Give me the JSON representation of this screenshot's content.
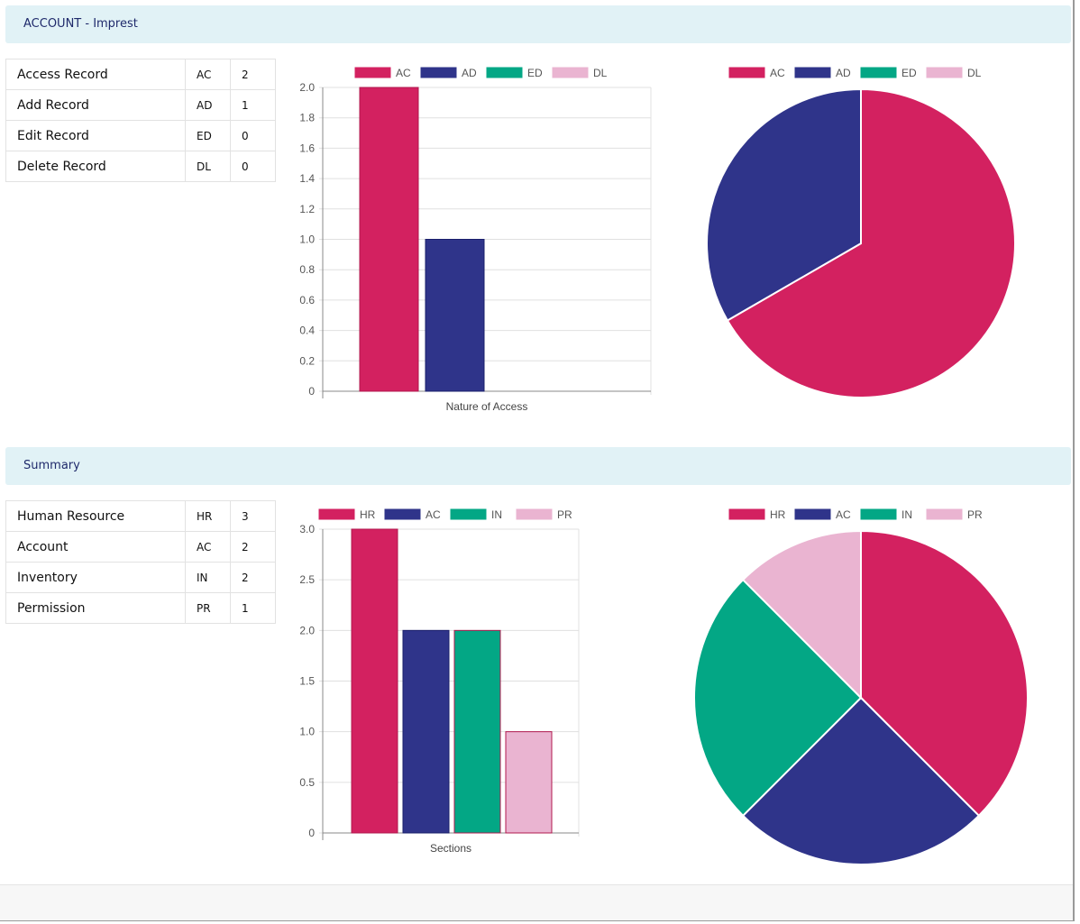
{
  "sections": [
    {
      "title": "ACCOUNT - Imprest",
      "rows": [
        {
          "name": "Access Record",
          "code": "AC",
          "count": "2"
        },
        {
          "name": "Add Record",
          "code": "AD",
          "count": "1"
        },
        {
          "name": "Edit Record",
          "code": "ED",
          "count": "0"
        },
        {
          "name": "Delete Record",
          "code": "DL",
          "count": "0"
        }
      ]
    },
    {
      "title": "Summary",
      "rows": [
        {
          "name": "Human Resource",
          "code": "HR",
          "count": "3"
        },
        {
          "name": "Account",
          "code": "AC",
          "count": "2"
        },
        {
          "name": "Inventory",
          "code": "IN",
          "count": "2"
        },
        {
          "name": "Permission",
          "code": "PR",
          "count": "1"
        }
      ]
    }
  ],
  "colors": [
    "#d32160",
    "#2f348a",
    "#03a785",
    "#eab4d1"
  ],
  "chart_data": [
    {
      "type": "bar",
      "title": "",
      "xlabel": "Nature of Access",
      "ylabel": "",
      "categories": [
        "AC",
        "AD",
        "ED",
        "DL"
      ],
      "values": [
        2,
        1,
        0,
        0
      ],
      "ylim": [
        0,
        2.0
      ],
      "yticks": [
        "0",
        "0.2",
        "0.4",
        "0.6",
        "0.8",
        "1.0",
        "1.2",
        "1.4",
        "1.6",
        "1.8",
        "2.0"
      ],
      "legend": "top",
      "grid": true
    },
    {
      "type": "pie",
      "categories": [
        "AC",
        "AD",
        "ED",
        "DL"
      ],
      "values": [
        2,
        1,
        0,
        0
      ],
      "legend": "top"
    },
    {
      "type": "bar",
      "title": "",
      "xlabel": "Sections",
      "ylabel": "",
      "categories": [
        "HR",
        "AC",
        "IN",
        "PR"
      ],
      "values": [
        3,
        2,
        2,
        1
      ],
      "ylim": [
        0,
        3.0
      ],
      "yticks": [
        "0",
        "0.5",
        "1.0",
        "1.5",
        "2.0",
        "2.5",
        "3.0"
      ],
      "legend": "top",
      "grid": true
    },
    {
      "type": "pie",
      "categories": [
        "HR",
        "AC",
        "IN",
        "PR"
      ],
      "values": [
        3,
        2,
        2,
        1
      ],
      "legend": "top"
    }
  ]
}
